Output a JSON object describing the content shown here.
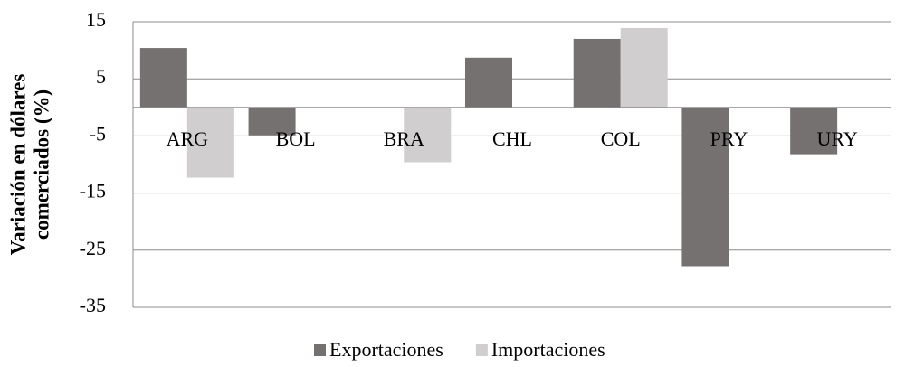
{
  "chart_data": {
    "type": "bar",
    "y_label": [
      "Variación en dólares",
      "comerciados (%)"
    ],
    "categories": [
      "ARG",
      "BOL",
      "BRA",
      "CHL",
      "COL",
      "PRY",
      "URY"
    ],
    "series": [
      {
        "name": "Exportaciones",
        "color": "#767171",
        "values": [
          10.4,
          -4.9,
          0,
          8.7,
          12.0,
          -27.8,
          -8.2
        ]
      },
      {
        "name": "Importaciones",
        "color": "#d0cece",
        "values": [
          -12.3,
          0,
          -9.6,
          0,
          13.9,
          0,
          0
        ]
      }
    ],
    "ylim": [
      -35,
      15
    ],
    "yticks": [
      -35,
      -25,
      -15,
      -5,
      5,
      15
    ],
    "grid": true
  }
}
